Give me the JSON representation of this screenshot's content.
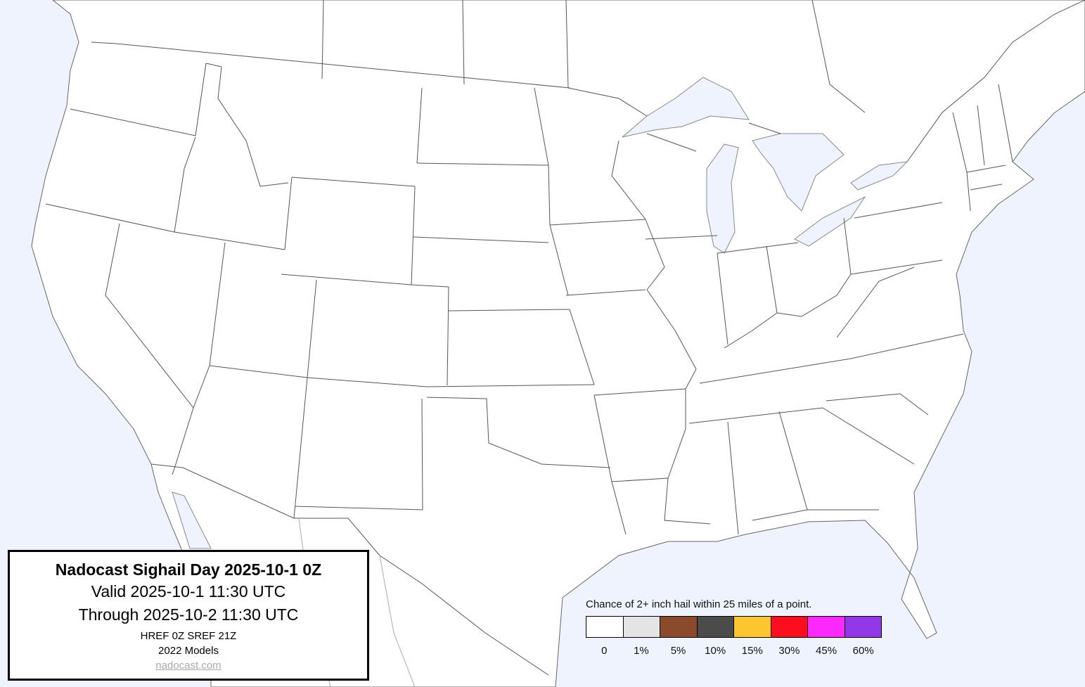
{
  "title_box": {
    "title": "Nadocast Sighail Day 2025-10-1 0Z",
    "valid": "Valid 2025-10-1 11:30 UTC",
    "through": "Through 2025-10-2 11:30 UTC",
    "models_run": "HREF 0Z SREF 21Z",
    "models_version": "2022 Models",
    "link": "nadocast.com"
  },
  "legend": {
    "title": "Chance of 2+ inch hail within 25 miles of a point.",
    "items": [
      {
        "label": "0",
        "color": "#ffffff"
      },
      {
        "label": "1%",
        "color": "#e4e4e4"
      },
      {
        "label": "5%",
        "color": "#8b4a2b"
      },
      {
        "label": "10%",
        "color": "#4b4b4b"
      },
      {
        "label": "15%",
        "color": "#fdc52f"
      },
      {
        "label": "30%",
        "color": "#fc0e1f"
      },
      {
        "label": "45%",
        "color": "#fc28fc"
      },
      {
        "label": "60%",
        "color": "#9238e8"
      }
    ]
  },
  "colors": {
    "water": "#eef3fd",
    "land": "#ffffff",
    "borders": "#555555"
  }
}
